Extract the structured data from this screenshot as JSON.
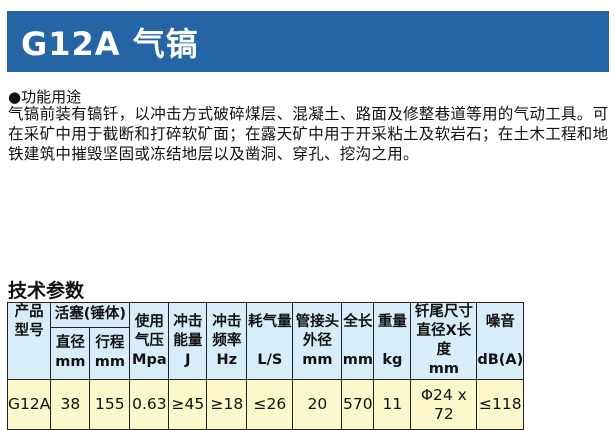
{
  "title": "G12A 气镐",
  "section": "●功能用途",
  "description": "气镐前装有镐钎，以冲击方式破碎煤层、混凝土、路面及修整巷道等用的气动工具。可在采矿中用于截断和打碎软矿面；在露天矿中用于开采粘土及软岩石；在土木工程和地铁建筑中摧毁坚固或冻结地层以及凿洞、穿孔、挖沟之用。",
  "specs_title": "技术参数",
  "table": {
    "headers": {
      "model": "产品型号",
      "piston": "活塞(锤体)",
      "diameter": "直径",
      "diameter_unit": "mm",
      "stroke": "行程",
      "stroke_unit": "mm",
      "pressure": "使用气压",
      "pressure_unit": "Mpa",
      "energy": "冲击能量",
      "energy_unit": "J",
      "freq": "冲击频率",
      "freq_unit": "Hz",
      "air": "耗气量",
      "air_unit": "L/S",
      "hose": "管接头外径",
      "hose_unit": "mm",
      "length": "全长",
      "length_unit": "mm",
      "weight": "重量",
      "weight_unit": "kg",
      "shank": "钎尾尺寸直径X长度",
      "shank_unit": "mm",
      "noise": "噪音",
      "noise_unit": "dB(A)"
    },
    "row": [
      "G12A",
      "38",
      "155",
      "0.63",
      "≥45",
      "≥18",
      "≤26",
      "20",
      "570",
      "11",
      "Φ24 x 72",
      "≤118"
    ]
  },
  "colors": {
    "banner": "#2565a6",
    "header_bg": "#d7eefa",
    "row_bg": "#fdf8cc"
  }
}
